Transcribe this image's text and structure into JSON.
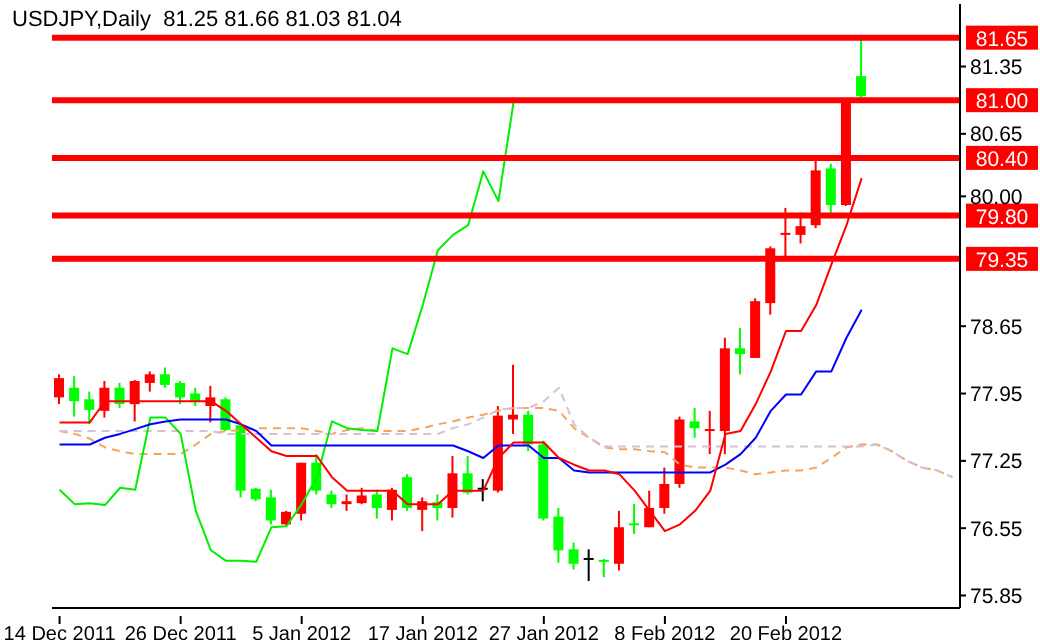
{
  "chart_data": {
    "type": "candlestick",
    "title": "USDJPY,Daily  81.25 81.66 81.03 81.04",
    "categories": [
      "14 Dec 2011",
      null,
      null,
      null,
      null,
      null,
      null,
      null,
      "26 Dec 2011",
      null,
      null,
      null,
      null,
      null,
      null,
      null,
      "5 Jan 2012",
      null,
      null,
      null,
      null,
      null,
      null,
      null,
      "17 Jan 2012",
      null,
      null,
      null,
      null,
      null,
      null,
      null,
      "27 Jan 2012",
      null,
      null,
      null,
      null,
      null,
      null,
      null,
      "8 Feb 2012",
      null,
      null,
      null,
      null,
      null,
      null,
      null,
      "20 Feb 2012",
      null,
      null,
      null,
      null,
      null,
      null,
      null,
      null,
      null,
      null,
      null
    ],
    "ohlc": [
      [
        77.91,
        78.15,
        77.84,
        78.11
      ],
      [
        78.01,
        78.13,
        77.71,
        77.87
      ],
      [
        77.89,
        77.97,
        77.63,
        77.78
      ],
      [
        77.77,
        78.08,
        77.7,
        78.01
      ],
      [
        78.01,
        78.06,
        77.8,
        77.84
      ],
      [
        77.84,
        78.09,
        77.66,
        78.08
      ],
      [
        78.06,
        78.18,
        77.97,
        78.15
      ],
      [
        78.15,
        78.22,
        78.01,
        78.04
      ],
      [
        78.06,
        78.08,
        77.84,
        77.91
      ],
      [
        77.95,
        78.01,
        77.82,
        77.86
      ],
      [
        77.82,
        78.03,
        77.65,
        77.91
      ],
      [
        77.89,
        77.91,
        77.56,
        77.57
      ],
      [
        77.62,
        77.63,
        76.87,
        76.94
      ],
      [
        76.96,
        76.97,
        76.83,
        76.85
      ],
      [
        76.87,
        76.95,
        76.59,
        76.63
      ],
      [
        76.59,
        76.73,
        76.58,
        76.72
      ],
      [
        76.7,
        77.23,
        76.63,
        77.23
      ],
      [
        77.23,
        77.32,
        76.9,
        76.94
      ],
      [
        76.9,
        76.94,
        76.76,
        76.8
      ],
      [
        76.8,
        76.9,
        76.73,
        76.83
      ],
      [
        76.81,
        76.97,
        76.8,
        76.89
      ],
      [
        76.9,
        76.95,
        76.65,
        76.76
      ],
      [
        76.74,
        76.97,
        76.63,
        76.95
      ],
      [
        77.08,
        77.11,
        76.73,
        76.76
      ],
      [
        76.74,
        76.87,
        76.52,
        76.83
      ],
      [
        76.82,
        76.9,
        76.63,
        76.76
      ],
      [
        76.76,
        77.3,
        76.66,
        77.12
      ],
      [
        77.12,
        77.3,
        76.9,
        76.92
      ],
      [
        76.96,
        77.06,
        76.83,
        76.96
      ],
      [
        76.94,
        77.82,
        76.92,
        77.72
      ],
      [
        77.68,
        78.25,
        77.53,
        77.73
      ],
      [
        77.73,
        77.77,
        77.35,
        77.42
      ],
      [
        77.42,
        77.46,
        76.63,
        76.65
      ],
      [
        76.67,
        76.76,
        76.19,
        76.32
      ],
      [
        76.33,
        76.4,
        76.12,
        76.18
      ],
      [
        76.23,
        76.33,
        76.0,
        76.23
      ],
      [
        76.21,
        76.23,
        76.04,
        76.19
      ],
      [
        76.18,
        76.73,
        76.11,
        76.56
      ],
      [
        76.59,
        76.8,
        76.49,
        76.57
      ],
      [
        76.56,
        76.94,
        76.56,
        76.76
      ],
      [
        76.76,
        77.18,
        76.7,
        77.01
      ],
      [
        77.01,
        77.71,
        76.97,
        77.68
      ],
      [
        77.66,
        77.8,
        77.49,
        77.59
      ],
      [
        77.55,
        77.77,
        77.32,
        77.57
      ],
      [
        77.56,
        78.53,
        77.32,
        78.42
      ],
      [
        78.42,
        78.63,
        78.15,
        78.36
      ],
      [
        78.32,
        78.94,
        78.32,
        78.91
      ],
      [
        78.89,
        79.48,
        78.77,
        79.46
      ],
      [
        79.59,
        79.88,
        79.36,
        79.61
      ],
      [
        79.6,
        79.83,
        79.51,
        79.69
      ],
      [
        79.7,
        80.38,
        79.67,
        80.27
      ],
      [
        80.29,
        80.34,
        79.81,
        79.91
      ],
      [
        79.91,
        81.0,
        79.9,
        80.98
      ],
      [
        81.25,
        81.66,
        81.03,
        81.04
      ],
      null,
      null,
      null,
      null,
      null,
      null
    ],
    "colors": [
      "#ff0000",
      "#00ff00",
      "#00ff00",
      "#ff0000",
      "#00ff00",
      "#ff0000",
      "#ff0000",
      "#00ff00",
      "#00ff00",
      "#00ff00",
      "#ff0000",
      "#00ff00",
      "#00ff00",
      "#00ff00",
      "#00ff00",
      "#ff0000",
      "#ff0000",
      "#00ff00",
      "#00ff00",
      "#ff0000",
      "#ff0000",
      "#00ff00",
      "#ff0000",
      "#00ff00",
      "#ff0000",
      "#00ff00",
      "#ff0000",
      "#00ff00",
      "#000000",
      "#ff0000",
      "#ff0000",
      "#00ff00",
      "#00ff00",
      "#00ff00",
      "#00ff00",
      "#000000",
      "#00ff00",
      "#ff0000",
      "#00ff00",
      "#ff0000",
      "#ff0000",
      "#ff0000",
      "#00ff00",
      "#ff0000",
      "#ff0000",
      "#00ff00",
      "#ff0000",
      "#ff0000",
      "#ff0000",
      "#ff0000",
      "#ff0000",
      "#00ff00",
      "#ff0000",
      "#00ff00",
      null,
      null,
      null,
      null,
      null,
      null
    ],
    "series": [
      {
        "type": "line",
        "color": "#f4a460",
        "line_style": "dashed",
        "values": [
          77.56,
          77.53,
          77.48,
          77.39,
          77.35,
          77.32,
          77.32,
          77.32,
          77.32,
          77.42,
          77.53,
          77.56,
          77.57,
          77.59,
          77.59,
          77.59,
          77.59,
          77.56,
          77.53,
          77.57,
          77.59,
          77.56,
          77.56,
          77.56,
          77.59,
          77.63,
          77.66,
          77.7,
          77.73,
          77.77,
          77.8,
          77.8,
          77.8,
          77.77,
          77.59,
          77.49,
          77.39,
          77.37,
          77.37,
          77.35,
          77.34,
          77.21,
          77.18,
          77.18,
          77.18,
          77.15,
          77.11,
          77.13,
          77.15,
          77.15,
          77.18,
          77.28,
          77.39,
          77.42,
          77.42,
          77.35,
          77.25,
          77.18,
          77.15,
          77.08
        ]
      },
      {
        "type": "line",
        "color": "#d8bfd8",
        "line_style": "dashed",
        "values": [
          77.56,
          77.56,
          77.56,
          77.56,
          77.56,
          77.56,
          77.56,
          77.56,
          77.56,
          77.56,
          77.56,
          77.53,
          77.53,
          77.53,
          77.53,
          77.53,
          77.53,
          77.53,
          77.53,
          77.53,
          77.53,
          77.53,
          77.53,
          77.53,
          77.53,
          77.53,
          77.59,
          77.63,
          77.7,
          77.78,
          77.8,
          77.8,
          77.87,
          78.01,
          77.63,
          77.49,
          77.4,
          77.4,
          77.4,
          77.4,
          77.4,
          77.4,
          77.4,
          77.4,
          77.4,
          77.4,
          77.4,
          77.4,
          77.4,
          77.4,
          77.4,
          77.4,
          77.4,
          77.4,
          77.42,
          77.35,
          77.25,
          77.18,
          77.15,
          77.08
        ]
      },
      {
        "type": "line",
        "color": "#00ee00",
        "line_style": "solid",
        "values": [
          76.95,
          76.8,
          76.81,
          76.79,
          76.97,
          76.95,
          77.7,
          77.7,
          77.53,
          76.73,
          76.32,
          76.21,
          76.21,
          76.2,
          76.56,
          76.57,
          76.8,
          77.08,
          77.66,
          77.59,
          77.57,
          77.56,
          78.42,
          78.36,
          78.87,
          79.44,
          79.6,
          79.7,
          80.26,
          79.95,
          80.98,
          null,
          null,
          null,
          null,
          null,
          null,
          null,
          null,
          null,
          null,
          null,
          null,
          null,
          null,
          null,
          null,
          null,
          null,
          null,
          null,
          null,
          null,
          null,
          null,
          null,
          null,
          null,
          null,
          null
        ]
      },
      {
        "type": "line",
        "color": "#0000ff",
        "line_style": "solid",
        "values": [
          77.42,
          77.42,
          77.42,
          77.49,
          77.53,
          77.58,
          77.63,
          77.66,
          77.68,
          77.68,
          77.68,
          77.68,
          77.63,
          77.56,
          77.41,
          77.41,
          77.41,
          77.41,
          77.41,
          77.41,
          77.41,
          77.41,
          77.41,
          77.41,
          77.41,
          77.41,
          77.41,
          77.35,
          77.28,
          77.41,
          77.41,
          77.41,
          77.28,
          77.28,
          77.15,
          77.13,
          77.13,
          77.13,
          77.13,
          77.13,
          77.13,
          77.13,
          77.13,
          77.13,
          77.21,
          77.32,
          77.49,
          77.77,
          77.94,
          77.94,
          78.18,
          78.18,
          78.53,
          78.82,
          null,
          null,
          null,
          null,
          null,
          null
        ]
      },
      {
        "type": "line",
        "color": "#ff0000",
        "line_style": "solid",
        "values": [
          77.65,
          77.65,
          77.65,
          77.87,
          77.87,
          77.87,
          77.87,
          77.87,
          77.87,
          77.87,
          77.87,
          77.77,
          77.63,
          77.49,
          77.35,
          77.3,
          77.3,
          77.3,
          77.08,
          76.94,
          76.94,
          76.94,
          76.94,
          76.8,
          76.8,
          76.8,
          76.94,
          76.94,
          76.94,
          77.28,
          77.44,
          77.44,
          77.44,
          77.28,
          77.21,
          77.15,
          77.15,
          77.11,
          76.94,
          76.73,
          76.52,
          76.59,
          76.73,
          76.94,
          77.53,
          77.56,
          77.84,
          78.18,
          78.6,
          78.6,
          78.87,
          79.29,
          79.7,
          80.19,
          null,
          null,
          null,
          null,
          null,
          null
        ]
      }
    ],
    "ylim": [
      75.72,
      82.0
    ],
    "yticks": [
      75.85,
      76.55,
      77.25,
      77.95,
      78.65,
      {
        "value": 80,
        "label": "80.00"
      },
      80.65,
      81.35
    ],
    "ref_lines": [
      {
        "axis": "y",
        "value": 81.65,
        "label": "81.65",
        "color": "#ff0000"
      },
      {
        "axis": "y",
        "value": 81.0,
        "label": "81.00",
        "color": "#ff0000"
      },
      {
        "axis": "y",
        "value": 80.4,
        "label": "80.40",
        "color": "#ff0000"
      },
      {
        "axis": "y",
        "value": 79.8,
        "label": "79.80",
        "color": "#ff0000"
      },
      {
        "axis": "y",
        "value": 79.35,
        "label": "79.35",
        "color": "#ff0000"
      }
    ],
    "marker": "none",
    "legend": false,
    "grid": false
  }
}
